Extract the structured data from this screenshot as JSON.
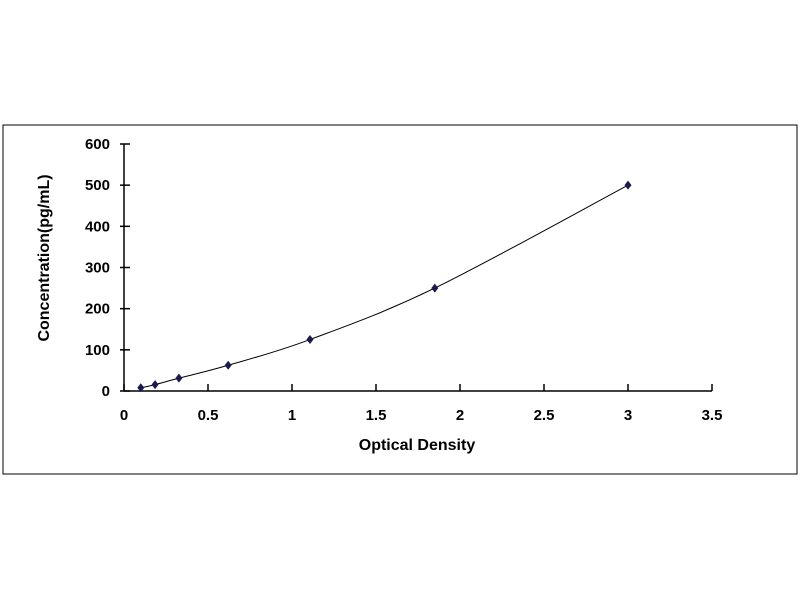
{
  "chart_data": {
    "type": "scatter",
    "title": "",
    "xlabel": "Optical Density",
    "ylabel": "Concentration(pg/mL)",
    "xlim": [
      0,
      3.5
    ],
    "ylim": [
      0,
      600
    ],
    "xticks": [
      "0",
      "0.5",
      "1",
      "1.5",
      "2",
      "2.5",
      "3",
      "3.5"
    ],
    "yticks": [
      "0",
      "100",
      "200",
      "300",
      "400",
      "500",
      "600"
    ],
    "grid": false,
    "legend": "none",
    "trendline": "smooth curve",
    "marker": "diamond",
    "color": "#1a1a4e",
    "series": [
      {
        "x": [
          0.1,
          0.185,
          0.327,
          0.62,
          1.107,
          1.85,
          3.0
        ],
        "y": [
          7.8,
          15.6,
          31.25,
          62.5,
          125,
          250,
          500
        ]
      }
    ]
  }
}
